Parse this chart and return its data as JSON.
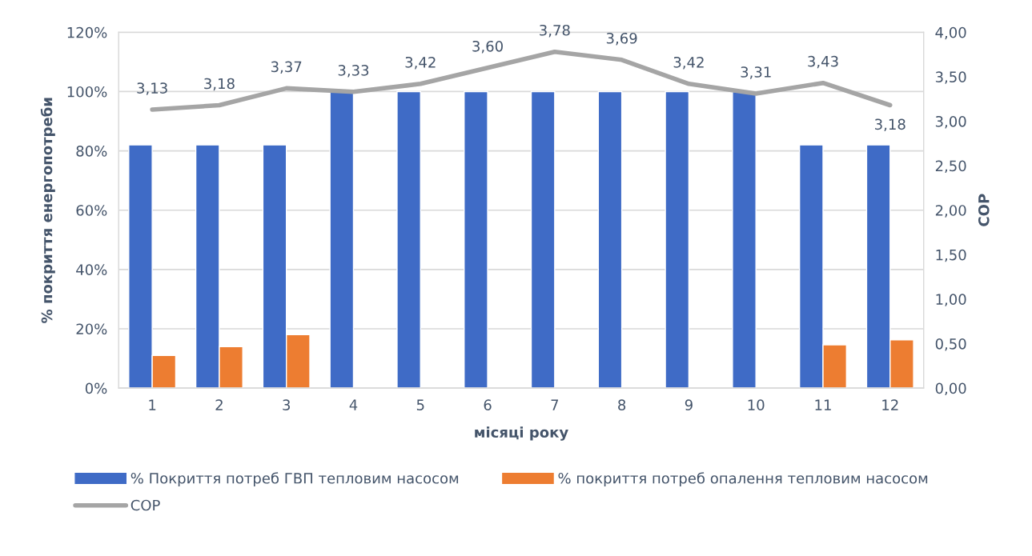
{
  "chart_data": {
    "type": "bar",
    "categories": [
      "1",
      "2",
      "3",
      "4",
      "5",
      "6",
      "7",
      "8",
      "9",
      "10",
      "11",
      "12"
    ],
    "xlabel": "місяці року",
    "ylabel": "% покриття енергопотреби",
    "y2label": "COP",
    "series": [
      {
        "name": "% Покриття потреб ГВП тепловим насосом",
        "color": "#3f6bc6",
        "values": [
          82,
          82,
          82,
          100,
          100,
          100,
          100,
          100,
          100,
          100,
          82,
          82
        ]
      },
      {
        "name": "% покриття потреб опалення тепловим насосом",
        "color": "#ed7d31",
        "values": [
          11,
          14,
          18,
          null,
          null,
          null,
          null,
          null,
          null,
          null,
          14.6,
          16.3
        ]
      },
      {
        "name": "COP",
        "type": "line",
        "axis": "y2",
        "color": "#a5a5a5",
        "marker": "none",
        "line_style": "solid",
        "values": [
          3.13,
          3.18,
          3.37,
          3.33,
          3.42,
          3.6,
          3.78,
          3.69,
          3.42,
          3.31,
          3.43,
          3.18
        ],
        "value_labels": [
          "3,13",
          "3,18",
          "3,37",
          "3,33",
          "3,42",
          "3,60",
          "3,78",
          "3,69",
          "3,42",
          "3,31",
          "3,43",
          "3,18"
        ]
      }
    ],
    "ylim": [
      0,
      120
    ],
    "yticks": [
      {
        "value": 0,
        "label": "0%"
      },
      {
        "value": 20,
        "label": "20%"
      },
      {
        "value": 40,
        "label": "40%"
      },
      {
        "value": 60,
        "label": "60%"
      },
      {
        "value": 80,
        "label": "80%"
      },
      {
        "value": 100,
        "label": "100%"
      },
      {
        "value": 120,
        "label": "120%"
      }
    ],
    "y2lim": [
      0,
      4
    ],
    "y2ticks": [
      {
        "value": 0,
        "label": "0,00"
      },
      {
        "value": 0.5,
        "label": "0,50"
      },
      {
        "value": 1,
        "label": "1,00"
      },
      {
        "value": 1.5,
        "label": "1,50"
      },
      {
        "value": 2,
        "label": "2,00"
      },
      {
        "value": 2.5,
        "label": "2,50"
      },
      {
        "value": 3,
        "label": "3,00"
      },
      {
        "value": 3.5,
        "label": "3,50"
      },
      {
        "value": 4,
        "label": "4,00"
      }
    ],
    "grid": "y",
    "legend": "bottom"
  }
}
